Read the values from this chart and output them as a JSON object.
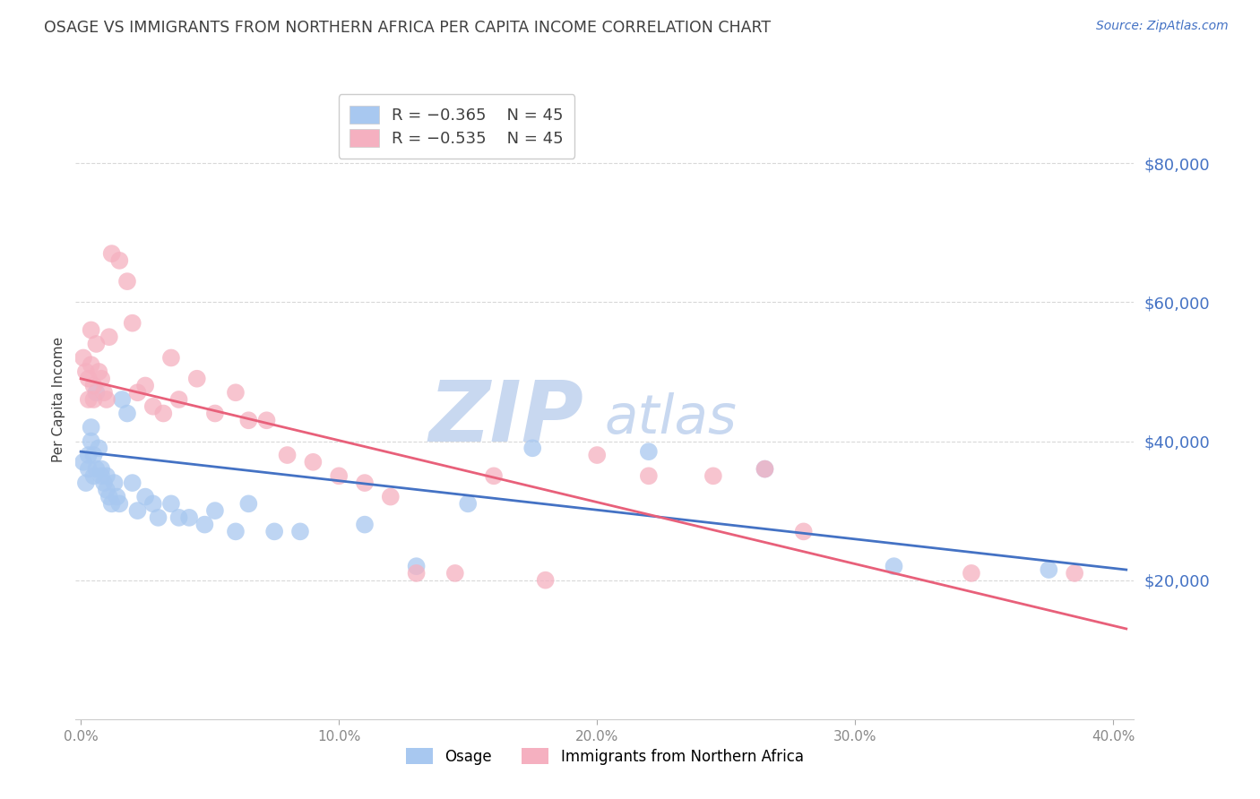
{
  "title": "OSAGE VS IMMIGRANTS FROM NORTHERN AFRICA PER CAPITA INCOME CORRELATION CHART",
  "source": "Source: ZipAtlas.com",
  "ylabel": "Per Capita Income",
  "legend_labels": [
    "Osage",
    "Immigrants from Northern Africa"
  ],
  "legend_r": [
    "R = −0.365",
    "R = −0.535"
  ],
  "legend_n": [
    "N = 45",
    "N = 45"
  ],
  "blue_color": "#a8c8f0",
  "pink_color": "#f5b0c0",
  "blue_line_color": "#4472c4",
  "pink_line_color": "#e8607a",
  "watermark_zip": "ZIP",
  "watermark_atlas": "atlas",
  "watermark_color": "#c8d8f0",
  "ylim": [
    0,
    92000
  ],
  "xlim": [
    -0.002,
    0.408
  ],
  "yticks": [
    20000,
    40000,
    60000,
    80000
  ],
  "xticks": [
    0.0,
    0.1,
    0.2,
    0.3,
    0.4
  ],
  "xtick_labels": [
    "0.0%",
    "10.0%",
    "20.0%",
    "30.0%",
    "40.0%"
  ],
  "ytick_labels": [
    "$20,000",
    "$40,000",
    "$60,000",
    "$80,000"
  ],
  "blue_scatter_x": [
    0.001,
    0.002,
    0.003,
    0.003,
    0.004,
    0.004,
    0.005,
    0.005,
    0.006,
    0.006,
    0.007,
    0.008,
    0.008,
    0.009,
    0.01,
    0.01,
    0.011,
    0.012,
    0.013,
    0.014,
    0.015,
    0.016,
    0.018,
    0.02,
    0.022,
    0.025,
    0.028,
    0.03,
    0.035,
    0.038,
    0.042,
    0.048,
    0.052,
    0.06,
    0.065,
    0.075,
    0.085,
    0.11,
    0.13,
    0.15,
    0.175,
    0.22,
    0.265,
    0.315,
    0.375
  ],
  "blue_scatter_y": [
    37000,
    34000,
    38000,
    36000,
    42000,
    40000,
    38000,
    35000,
    47000,
    36000,
    39000,
    35000,
    36000,
    34000,
    33000,
    35000,
    32000,
    31000,
    34000,
    32000,
    31000,
    46000,
    44000,
    34000,
    30000,
    32000,
    31000,
    29000,
    31000,
    29000,
    29000,
    28000,
    30000,
    27000,
    31000,
    27000,
    27000,
    28000,
    22000,
    31000,
    39000,
    38500,
    36000,
    22000,
    21500
  ],
  "pink_scatter_x": [
    0.001,
    0.002,
    0.003,
    0.003,
    0.004,
    0.004,
    0.005,
    0.005,
    0.006,
    0.007,
    0.008,
    0.009,
    0.01,
    0.011,
    0.012,
    0.015,
    0.018,
    0.02,
    0.022,
    0.025,
    0.028,
    0.032,
    0.035,
    0.038,
    0.045,
    0.052,
    0.06,
    0.065,
    0.072,
    0.08,
    0.09,
    0.1,
    0.11,
    0.12,
    0.13,
    0.145,
    0.16,
    0.18,
    0.2,
    0.22,
    0.245,
    0.265,
    0.28,
    0.345,
    0.385
  ],
  "pink_scatter_y": [
    52000,
    50000,
    49000,
    46000,
    51000,
    56000,
    48000,
    46000,
    54000,
    50000,
    49000,
    47000,
    46000,
    55000,
    67000,
    66000,
    63000,
    57000,
    47000,
    48000,
    45000,
    44000,
    52000,
    46000,
    49000,
    44000,
    47000,
    43000,
    43000,
    38000,
    37000,
    35000,
    34000,
    32000,
    21000,
    21000,
    35000,
    20000,
    38000,
    35000,
    35000,
    36000,
    27000,
    21000,
    21000
  ],
  "blue_line_x0": 0.0,
  "blue_line_y0": 38500,
  "blue_line_x1": 0.405,
  "blue_line_y1": 21500,
  "pink_line_x0": 0.0,
  "pink_line_y0": 49000,
  "pink_line_x1": 0.405,
  "pink_line_y1": 13000,
  "background_color": "#ffffff",
  "grid_color": "#d8d8d8",
  "title_color": "#404040",
  "source_color": "#4472c4",
  "tick_color_y": "#4472c4",
  "tick_color_x": "#888888",
  "figsize": [
    14.06,
    8.92
  ],
  "dpi": 100
}
